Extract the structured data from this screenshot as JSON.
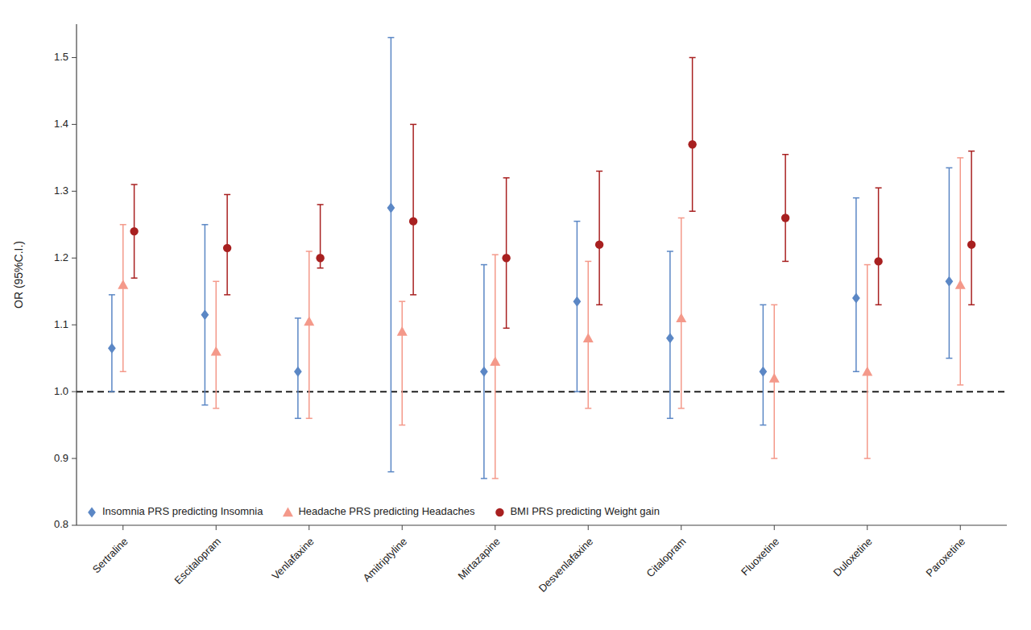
{
  "chart_data": {
    "type": "errorbar",
    "categories": [
      "Sertraline",
      "Escitalopram",
      "Venlafaxine",
      "Amitriptyline",
      "Mirtazapine",
      "Desvenlafaxine",
      "Citalopram",
      "Fluoxetine",
      "Duloxetine",
      "Paroxetine"
    ],
    "series": [
      {
        "name": "Insomnia PRS predicting Insomnia",
        "color": "#5b87c5",
        "marker": "diamond",
        "values": [
          1.065,
          1.115,
          1.03,
          1.275,
          1.03,
          1.135,
          1.08,
          1.03,
          1.14,
          1.165
        ],
        "ci_low": [
          1.0,
          0.98,
          0.96,
          0.88,
          0.87,
          1.0,
          0.96,
          0.95,
          1.03,
          1.05
        ],
        "ci_high": [
          1.145,
          1.25,
          1.11,
          1.53,
          1.19,
          1.255,
          1.21,
          1.13,
          1.29,
          1.335
        ]
      },
      {
        "name": "Headache PRS predicting Headaches",
        "color": "#f4998a",
        "marker": "triangle",
        "values": [
          1.16,
          1.06,
          1.105,
          1.09,
          1.045,
          1.08,
          1.11,
          1.02,
          1.03,
          1.16
        ],
        "ci_low": [
          1.03,
          0.975,
          0.96,
          0.95,
          0.87,
          0.975,
          0.975,
          0.9,
          0.9,
          1.01
        ],
        "ci_high": [
          1.25,
          1.165,
          1.21,
          1.135,
          1.205,
          1.195,
          1.26,
          1.13,
          1.19,
          1.35
        ]
      },
      {
        "name": "BMI PRS predicting Weight gain",
        "color": "#a82020",
        "marker": "circle",
        "values": [
          1.24,
          1.215,
          1.2,
          1.255,
          1.2,
          1.22,
          1.37,
          1.26,
          1.195,
          1.22
        ],
        "ci_low": [
          1.17,
          1.145,
          1.185,
          1.145,
          1.095,
          1.13,
          1.27,
          1.195,
          1.13,
          1.13
        ],
        "ci_high": [
          1.31,
          1.295,
          1.28,
          1.4,
          1.32,
          1.33,
          1.5,
          1.355,
          1.305,
          1.36
        ]
      }
    ],
    "reference_line": 1.0,
    "ylabel": "OR (95%C.I.)",
    "ylim": [
      0.8,
      1.55
    ],
    "yticks": [
      0.8,
      0.9,
      {
        "value": 1.0,
        "label": "1.0"
      },
      1.1,
      1.2,
      1.3,
      1.4,
      1.5
    ],
    "grid": false,
    "legend": "lower left"
  }
}
